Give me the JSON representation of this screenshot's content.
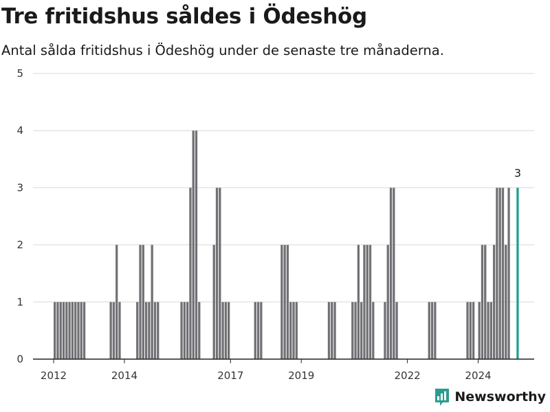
{
  "header": {
    "title": "Tre fritidshus såldes i Ödeshög",
    "subtitle": "Antal sålda fritidshus i Ödeshög under de senaste tre månaderna."
  },
  "branding": {
    "logo_text": "Newsworthy",
    "logo_icon": "newsworthy-chart-icon"
  },
  "colors": {
    "bar": "#717074",
    "highlight": "#1f9e8e",
    "grid": "#d9d9d9",
    "axis": "#222222",
    "brand": "#2a9d8f"
  },
  "chart_data": {
    "type": "bar",
    "title": "Tre fritidshus såldes i Ödeshög",
    "subtitle": "Antal sålda fritidshus i Ödeshög under de senaste tre månaderna.",
    "xlabel": "",
    "ylabel": "",
    "y_ticks": [
      "0",
      "1",
      "2",
      "3",
      "4",
      "5"
    ],
    "ylim": [
      0,
      5
    ],
    "x_ticks": [
      {
        "label": "2012",
        "month": "2012-01"
      },
      {
        "label": "2014",
        "month": "2014-01"
      },
      {
        "label": "2017",
        "month": "2017-01"
      },
      {
        "label": "2019",
        "month": "2019-01"
      },
      {
        "label": "2022",
        "month": "2022-01"
      },
      {
        "label": "2024",
        "month": "2024-01"
      }
    ],
    "xlim": [
      "2011-06",
      "2025-08"
    ],
    "grid": true,
    "highlight": {
      "month": "2025-02",
      "value": 3,
      "label": "3"
    },
    "points": [
      {
        "month": "2012-01",
        "value": 1
      },
      {
        "month": "2012-02",
        "value": 1
      },
      {
        "month": "2012-03",
        "value": 1
      },
      {
        "month": "2012-04",
        "value": 1
      },
      {
        "month": "2012-05",
        "value": 1
      },
      {
        "month": "2012-06",
        "value": 1
      },
      {
        "month": "2012-07",
        "value": 1
      },
      {
        "month": "2012-08",
        "value": 1
      },
      {
        "month": "2012-09",
        "value": 1
      },
      {
        "month": "2012-10",
        "value": 1
      },
      {
        "month": "2012-11",
        "value": 1
      },
      {
        "month": "2013-08",
        "value": 1
      },
      {
        "month": "2013-09",
        "value": 1
      },
      {
        "month": "2013-10",
        "value": 2
      },
      {
        "month": "2013-11",
        "value": 1
      },
      {
        "month": "2014-05",
        "value": 1
      },
      {
        "month": "2014-06",
        "value": 2
      },
      {
        "month": "2014-07",
        "value": 2
      },
      {
        "month": "2014-08",
        "value": 1
      },
      {
        "month": "2014-09",
        "value": 1
      },
      {
        "month": "2014-10",
        "value": 2
      },
      {
        "month": "2014-11",
        "value": 1
      },
      {
        "month": "2014-12",
        "value": 1
      },
      {
        "month": "2015-08",
        "value": 1
      },
      {
        "month": "2015-09",
        "value": 1
      },
      {
        "month": "2015-10",
        "value": 1
      },
      {
        "month": "2015-11",
        "value": 3
      },
      {
        "month": "2015-12",
        "value": 4
      },
      {
        "month": "2016-01",
        "value": 4
      },
      {
        "month": "2016-02",
        "value": 1
      },
      {
        "month": "2016-07",
        "value": 2
      },
      {
        "month": "2016-08",
        "value": 3
      },
      {
        "month": "2016-09",
        "value": 3
      },
      {
        "month": "2016-10",
        "value": 1
      },
      {
        "month": "2016-11",
        "value": 1
      },
      {
        "month": "2016-12",
        "value": 1
      },
      {
        "month": "2017-09",
        "value": 1
      },
      {
        "month": "2017-10",
        "value": 1
      },
      {
        "month": "2017-11",
        "value": 1
      },
      {
        "month": "2018-06",
        "value": 2
      },
      {
        "month": "2018-07",
        "value": 2
      },
      {
        "month": "2018-08",
        "value": 2
      },
      {
        "month": "2018-09",
        "value": 1
      },
      {
        "month": "2018-10",
        "value": 1
      },
      {
        "month": "2018-11",
        "value": 1
      },
      {
        "month": "2019-10",
        "value": 1
      },
      {
        "month": "2019-11",
        "value": 1
      },
      {
        "month": "2019-12",
        "value": 1
      },
      {
        "month": "2020-06",
        "value": 1
      },
      {
        "month": "2020-07",
        "value": 1
      },
      {
        "month": "2020-08",
        "value": 2
      },
      {
        "month": "2020-09",
        "value": 1
      },
      {
        "month": "2020-10",
        "value": 2
      },
      {
        "month": "2020-11",
        "value": 2
      },
      {
        "month": "2020-12",
        "value": 2
      },
      {
        "month": "2021-01",
        "value": 1
      },
      {
        "month": "2021-05",
        "value": 1
      },
      {
        "month": "2021-06",
        "value": 2
      },
      {
        "month": "2021-07",
        "value": 3
      },
      {
        "month": "2021-08",
        "value": 3
      },
      {
        "month": "2021-09",
        "value": 1
      },
      {
        "month": "2022-08",
        "value": 1
      },
      {
        "month": "2022-09",
        "value": 1
      },
      {
        "month": "2022-10",
        "value": 1
      },
      {
        "month": "2023-09",
        "value": 1
      },
      {
        "month": "2023-10",
        "value": 1
      },
      {
        "month": "2023-11",
        "value": 1
      },
      {
        "month": "2024-01",
        "value": 1
      },
      {
        "month": "2024-02",
        "value": 2
      },
      {
        "month": "2024-03",
        "value": 2
      },
      {
        "month": "2024-04",
        "value": 1
      },
      {
        "month": "2024-05",
        "value": 1
      },
      {
        "month": "2024-06",
        "value": 2
      },
      {
        "month": "2024-07",
        "value": 3
      },
      {
        "month": "2024-08",
        "value": 3
      },
      {
        "month": "2024-09",
        "value": 3
      },
      {
        "month": "2024-10",
        "value": 2
      },
      {
        "month": "2024-11",
        "value": 3
      }
    ]
  }
}
